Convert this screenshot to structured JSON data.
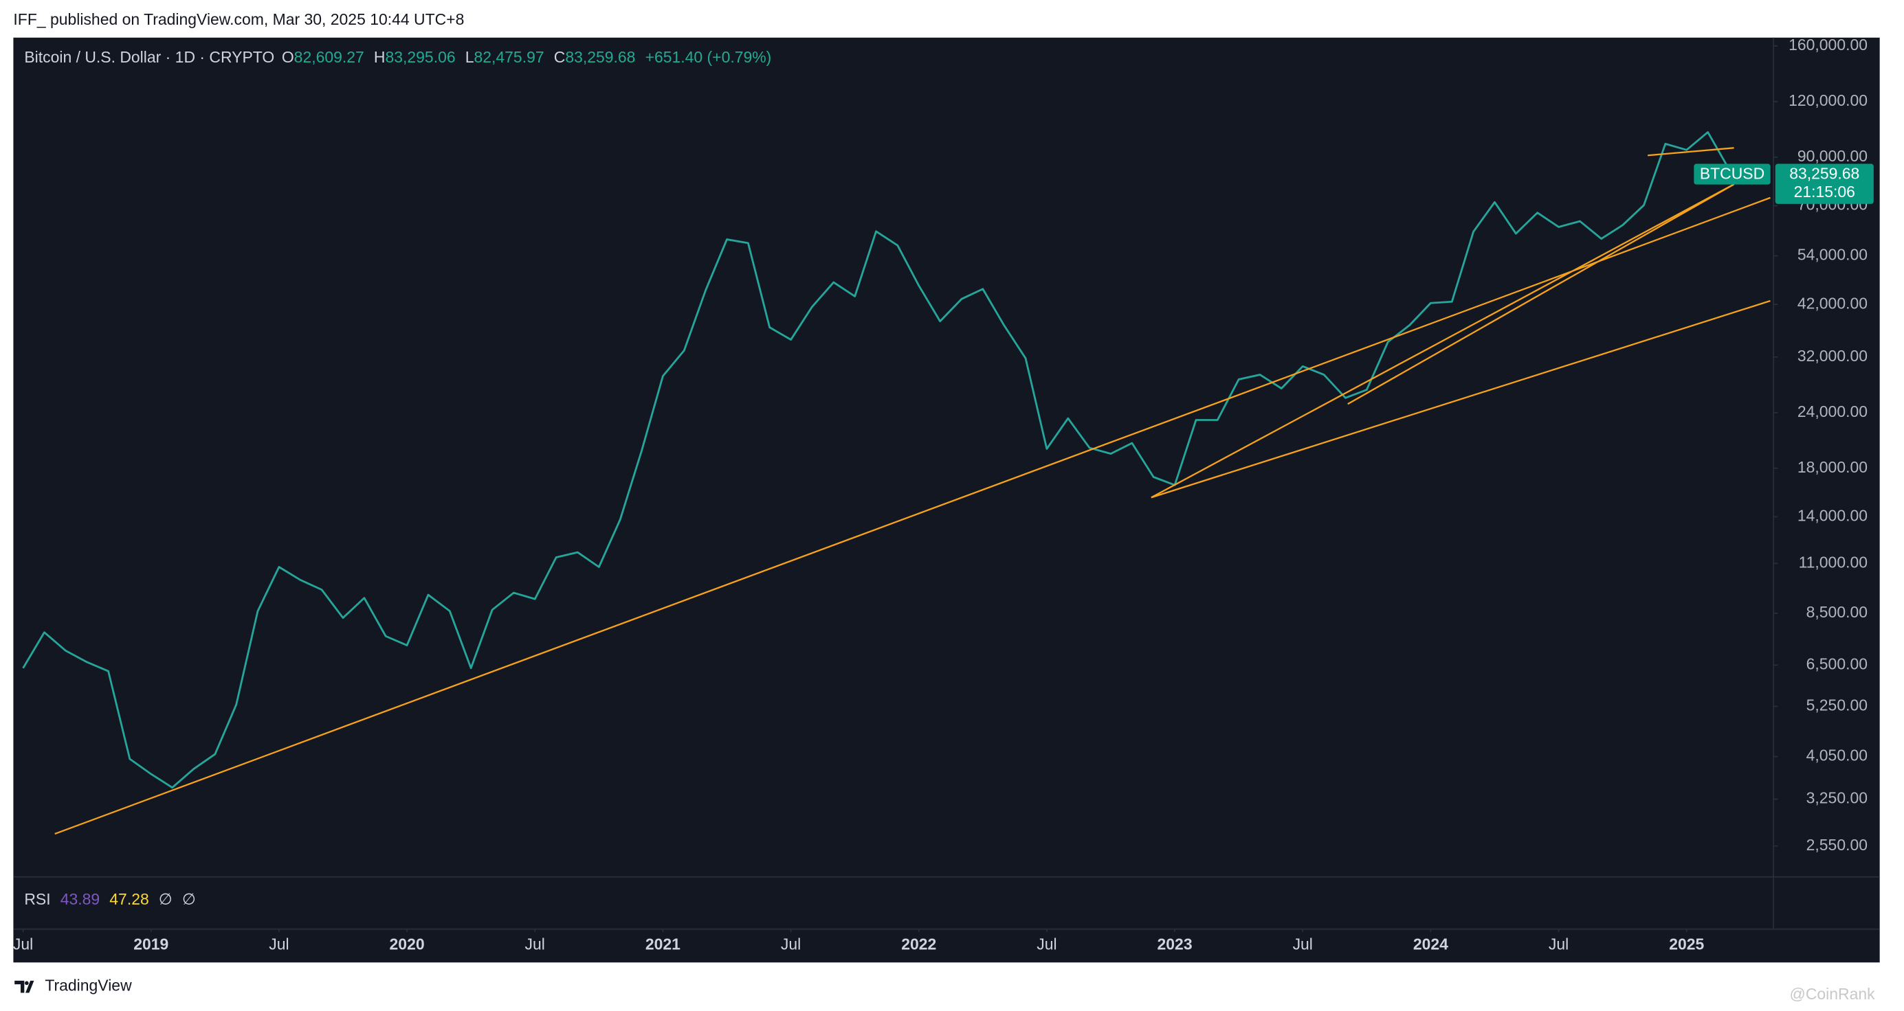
{
  "chart_data": {
    "type": "line",
    "published": "IFF_ published on TradingView.com, Mar 30, 2025 10:44 UTC+8",
    "symbol": "Bitcoin / U.S. Dollar · 1D · CRYPTO",
    "ohlc": [
      {
        "key": "O",
        "text": "82,609.27"
      },
      {
        "key": "H",
        "text": "83,295.06"
      },
      {
        "key": "L",
        "text": "82,475.97"
      },
      {
        "key": "C",
        "text": "83,259.68"
      }
    ],
    "change": "+651.40 (+0.79%)",
    "indicator": {
      "name": "RSI",
      "values": [
        43.89,
        47.28
      ],
      "colors": [
        "#7e57c2",
        "#fdd835"
      ],
      "extra": [
        "∅",
        "∅"
      ]
    },
    "price_tag": {
      "name": "BTCUSD",
      "price": "83,259.68",
      "countdown": "21:15:06",
      "color": "#089981"
    },
    "brand": "TradingView",
    "watermark": "@CoinRank",
    "log_scale": true,
    "grid": false,
    "xlim": [
      2018.462,
      2025.337
    ],
    "xticks": [
      {
        "value": 2018.5,
        "label": "Jul"
      },
      {
        "value": 2019,
        "label": "2019"
      },
      {
        "value": 2019.5,
        "label": "Jul"
      },
      {
        "value": 2020,
        "label": "2020"
      },
      {
        "value": 2020.5,
        "label": "Jul"
      },
      {
        "value": 2021,
        "label": "2021"
      },
      {
        "value": 2021.5,
        "label": "Jul"
      },
      {
        "value": 2022,
        "label": "2022"
      },
      {
        "value": 2022.5,
        "label": "Jul"
      },
      {
        "value": 2023,
        "label": "2023"
      },
      {
        "value": 2023.5,
        "label": "Jul"
      },
      {
        "value": 2024,
        "label": "2024"
      },
      {
        "value": 2024.5,
        "label": "Jul"
      },
      {
        "value": 2025,
        "label": "2025"
      }
    ],
    "ylim": [
      2180,
      167000
    ],
    "yticks": [
      {
        "value": 160000,
        "label": "160,000.00"
      },
      {
        "value": 120000,
        "label": "120,000.00"
      },
      {
        "value": 90000,
        "label": "90,000.00"
      },
      {
        "value": 70000,
        "label": "70,000.00"
      },
      {
        "value": 54000,
        "label": "54,000.00"
      },
      {
        "value": 42000,
        "label": "42,000.00"
      },
      {
        "value": 32000,
        "label": "32,000.00"
      },
      {
        "value": 24000,
        "label": "24,000.00"
      },
      {
        "value": 18000,
        "label": "18,000.00"
      },
      {
        "value": 14000,
        "label": "14,000.00"
      },
      {
        "value": 11000,
        "label": "11,000.00"
      },
      {
        "value": 8500,
        "label": "8,500.00"
      },
      {
        "value": 6500,
        "label": "6,500.00"
      },
      {
        "value": 5250,
        "label": "5,250.00"
      },
      {
        "value": 4050,
        "label": "4,050.00"
      },
      {
        "value": 3250,
        "label": "3,250.00"
      },
      {
        "value": 2550,
        "label": "2,550.00"
      }
    ],
    "series": [
      {
        "color": "#26a69a",
        "x": [
          2018.5,
          2018.583,
          2018.667,
          2018.75,
          2018.833,
          2018.917,
          2019.0,
          2019.083,
          2019.167,
          2019.25,
          2019.333,
          2019.417,
          2019.5,
          2019.583,
          2019.667,
          2019.75,
          2019.833,
          2019.917,
          2020.0,
          2020.083,
          2020.167,
          2020.25,
          2020.333,
          2020.417,
          2020.5,
          2020.583,
          2020.667,
          2020.75,
          2020.833,
          2020.917,
          2021.0,
          2021.083,
          2021.167,
          2021.25,
          2021.333,
          2021.417,
          2021.5,
          2021.583,
          2021.667,
          2021.75,
          2021.833,
          2021.917,
          2022.0,
          2022.083,
          2022.167,
          2022.25,
          2022.333,
          2022.417,
          2022.5,
          2022.583,
          2022.667,
          2022.75,
          2022.833,
          2022.917,
          2023.0,
          2023.083,
          2023.167,
          2023.25,
          2023.333,
          2023.417,
          2023.5,
          2023.583,
          2023.667,
          2023.75,
          2023.833,
          2023.917,
          2024.0,
          2024.083,
          2024.167,
          2024.25,
          2024.333,
          2024.417,
          2024.5,
          2024.583,
          2024.667,
          2024.75,
          2024.833,
          2024.917,
          2025.0,
          2025.083,
          2025.167,
          2025.247
        ],
        "values": [
          6400,
          7700,
          7000,
          6600,
          6300,
          4000,
          3700,
          3450,
          3800,
          4100,
          5300,
          8600,
          10800,
          10100,
          9600,
          8300,
          9200,
          7550,
          7200,
          9350,
          8600,
          6400,
          8650,
          9450,
          9150,
          11350,
          11650,
          10800,
          13800,
          19700,
          29000,
          33100,
          45200,
          58800,
          57700,
          37300,
          35000,
          41500,
          47100,
          43800,
          61300,
          57000,
          46300,
          38500,
          43200,
          45500,
          37700,
          31800,
          19900,
          23300,
          20000,
          19400,
          20500,
          17200,
          16500,
          23100,
          23100,
          28500,
          29200,
          27200,
          30500,
          29200,
          25900,
          27000,
          34600,
          37700,
          42300,
          42600,
          61200,
          71300,
          60600,
          67500,
          62700,
          64600,
          59000,
          63300,
          70200,
          96400,
          93400,
          102400,
          84300,
          83260
        ]
      }
    ],
    "trendline_color": "#f7a21b",
    "trendlines": [
      {
        "x": [
          2018.624,
          2025.327
        ],
        "values": [
          2715,
          72950
        ]
      },
      {
        "x": [
          2022.908,
          2025.327
        ],
        "values": [
          15470,
          42790
        ]
      },
      {
        "x": [
          2022.908,
          2025.185
        ],
        "values": [
          15470,
          78200
        ]
      },
      {
        "x": [
          2023.676,
          2025.185
        ],
        "values": [
          25090,
          78200
        ]
      },
      {
        "x": [
          2024.848,
          2025.185
        ],
        "values": [
          90800,
          94400
        ]
      }
    ]
  }
}
